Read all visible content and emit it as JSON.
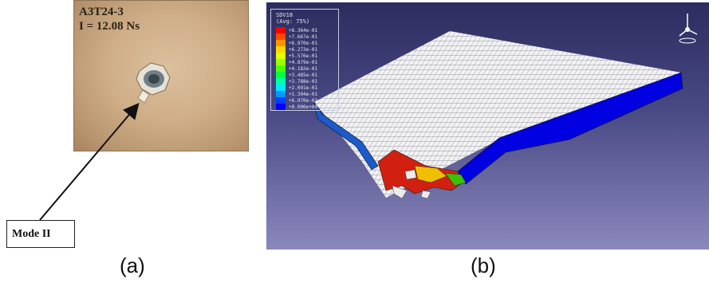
{
  "panel_a": {
    "specimen_label": "A3T24-3",
    "impulse_label": "I = 12.08 Ns",
    "callout_label": "Mode II",
    "caption": "(a)"
  },
  "panel_b": {
    "legend_title": "SDV18",
    "legend_subtitle": "(Avg: 75%)",
    "legend_values": [
      "+8.364e-01",
      "+7.667e-01",
      "+6.970e-01",
      "+6.273e-01",
      "+5.576e-01",
      "+4.879e-01",
      "+4.182e-01",
      "+3.485e-01",
      "+2.788e-01",
      "+2.091e-01",
      "+1.394e-01",
      "+6.970e-02",
      "+0.000e+00"
    ],
    "legend_colors": [
      "#ff0000",
      "#ff4a00",
      "#ff9400",
      "#ffd500",
      "#e0ff00",
      "#98ff00",
      "#4cff00",
      "#00ff40",
      "#00ffa8",
      "#00e8ff",
      "#0098ff",
      "#0040ff",
      "#0000ff"
    ],
    "caption": "(b)"
  }
}
